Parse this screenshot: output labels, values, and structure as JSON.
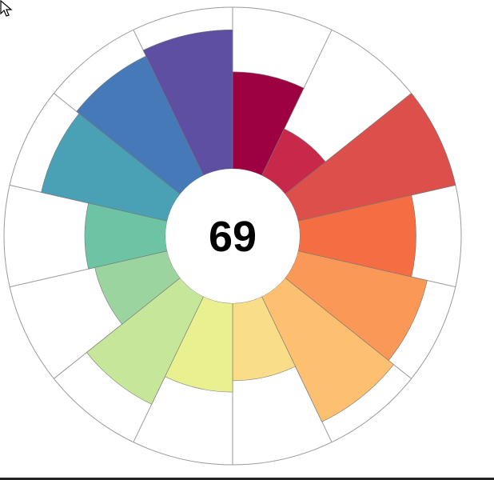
{
  "chart_data": {
    "type": "polar-area",
    "center_label": "69",
    "angle_start_deg": 0,
    "direction": "clockwise",
    "r_max": 100,
    "slices": [
      {
        "value": 60,
        "color": "#9e0142"
      },
      {
        "value": 32,
        "color": "#c8294a"
      },
      {
        "value": 100,
        "color": "#dc4f4a"
      },
      {
        "value": 72,
        "color": "#f46d43"
      },
      {
        "value": 82,
        "color": "#fa9857"
      },
      {
        "value": 86,
        "color": "#fdc070"
      },
      {
        "value": 48,
        "color": "#f9dd88"
      },
      {
        "value": 55,
        "color": "#e8f08f"
      },
      {
        "value": 74,
        "color": "#c6e79a"
      },
      {
        "value": 46,
        "color": "#9cd49f"
      },
      {
        "value": 50,
        "color": "#6cc4a5"
      },
      {
        "value": 80,
        "color": "#4aa0b5"
      },
      {
        "value": 82,
        "color": "#4679b7"
      },
      {
        "value": 86,
        "color": "#5e4fa2"
      }
    ],
    "grid": true,
    "legend": "none"
  },
  "cursor": {
    "icon": "arrow-cursor-icon"
  }
}
